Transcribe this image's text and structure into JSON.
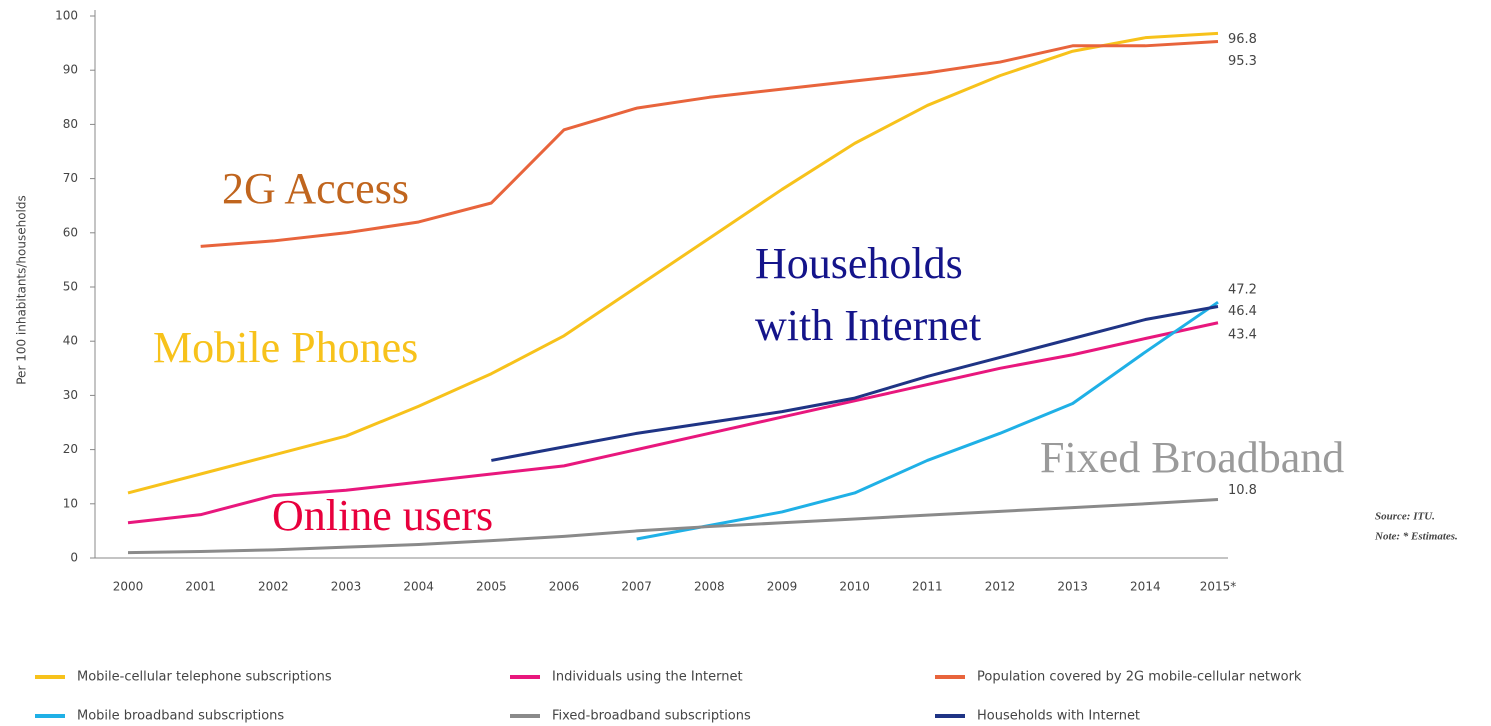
{
  "chart_data": {
    "type": "line",
    "y_label": "Per 100 inhabitants/households",
    "categories": [
      "2000",
      "2001",
      "2002",
      "2003",
      "2004",
      "2005",
      "2006",
      "2007",
      "2008",
      "2009",
      "2010",
      "2011",
      "2012",
      "2013",
      "2014",
      "2015*"
    ],
    "ylim": [
      0,
      100
    ],
    "yticks": [
      0,
      10,
      20,
      30,
      40,
      50,
      60,
      70,
      80,
      90,
      100
    ],
    "grid": false,
    "legend": "bottom",
    "series": [
      {
        "name": "Mobile-cellular telephone subscriptions",
        "color": "#f7c21b",
        "values": [
          12,
          15.5,
          19,
          22.5,
          28,
          34,
          41,
          50,
          59,
          68,
          76.5,
          83.5,
          89,
          93.5,
          96,
          96.8
        ]
      },
      {
        "name": "Individuals using the Internet",
        "color": "#e8177d",
        "values": [
          6.5,
          8,
          11.5,
          12.5,
          14,
          15.5,
          17,
          20,
          23,
          26,
          29,
          32,
          35,
          37.5,
          40.5,
          43.4
        ]
      },
      {
        "name": "Population covered by 2G mobile-cellular network",
        "color": "#e8643c",
        "values": [
          null,
          57.5,
          58.5,
          60,
          62,
          65.5,
          79,
          83,
          85,
          86.5,
          88,
          89.5,
          91.5,
          94.5,
          94.5,
          95.3
        ]
      },
      {
        "name": "Mobile broadband subscriptions",
        "color": "#1fb0e6",
        "values": [
          null,
          null,
          null,
          null,
          null,
          null,
          null,
          3.5,
          6,
          8.5,
          12,
          18,
          23,
          28.5,
          38,
          47.2
        ]
      },
      {
        "name": "Fixed-broadband subscriptions",
        "color": "#8a8a8a",
        "values": [
          1,
          1.2,
          1.5,
          2,
          2.5,
          3.2,
          4,
          5,
          5.8,
          6.5,
          7.2,
          7.9,
          8.6,
          9.3,
          10,
          10.8
        ]
      },
      {
        "name": "Households with Internet",
        "color": "#1f3485",
        "values": [
          null,
          null,
          null,
          null,
          null,
          18,
          20.5,
          23,
          25,
          27,
          29.5,
          33.5,
          37,
          40.5,
          44,
          46.4
        ]
      }
    ],
    "annotations": [
      {
        "lines": [
          "2G Access"
        ],
        "color": "#c0651e"
      },
      {
        "lines": [
          "Mobile Phones"
        ],
        "color": "#f7c21b"
      },
      {
        "lines": [
          "Households",
          "with Internet"
        ],
        "color": "#14148a"
      },
      {
        "lines": [
          "Online users"
        ],
        "color": "#e8003d"
      },
      {
        "lines": [
          "Fixed Broadband"
        ],
        "color": "#9a9a9a"
      }
    ],
    "source": "Source: ITU.",
    "note": "Note: * Estimates."
  }
}
